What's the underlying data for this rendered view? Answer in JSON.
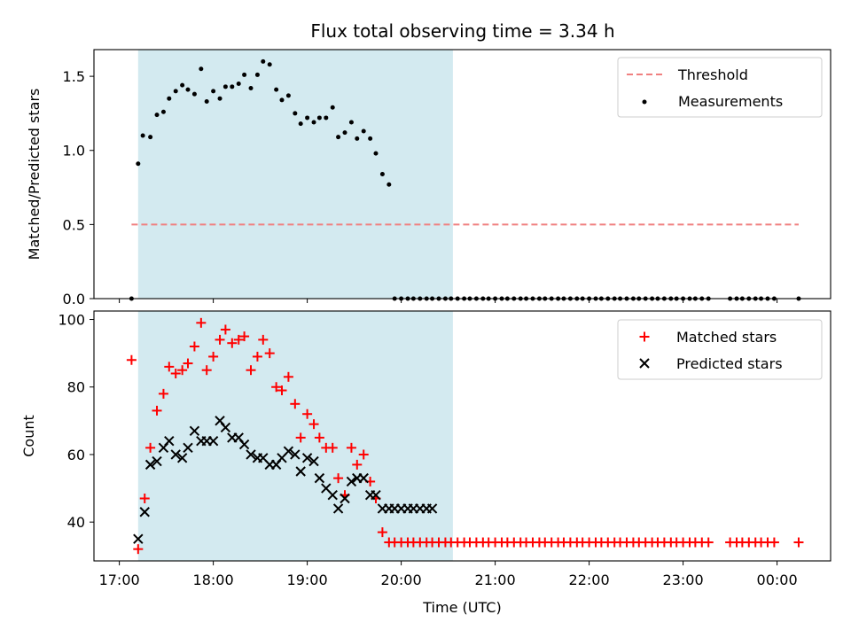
{
  "chart_data": {
    "title": "Flux total observing time = 3.34 h",
    "xlabel": "Time (UTC)",
    "x_ticks": [
      "17:00",
      "18:00",
      "19:00",
      "20:00",
      "21:00",
      "22:00",
      "23:00",
      "00:00"
    ],
    "x_tick_hours": [
      17,
      18,
      19,
      20,
      21,
      22,
      23,
      24
    ],
    "x_range_hours": [
      16.73,
      24.57
    ],
    "shaded_span_hours": [
      17.2,
      20.55
    ],
    "shade_color": "#d3eaf0",
    "panels": [
      {
        "type": "scatter",
        "ylabel": "Matched/Predicted stars",
        "ylim": [
          0,
          1.68
        ],
        "y_ticks": [
          "0.0",
          "0.5",
          "1.0",
          "1.5"
        ],
        "y_tick_values": [
          0,
          0.5,
          1.0,
          1.5
        ],
        "legend_position": "top-right",
        "threshold": {
          "name": "Threshold",
          "value": 0.5,
          "x_range_hours": [
            17.13,
            24.23
          ],
          "color": "#f08080"
        },
        "series": [
          {
            "name": "Measurements",
            "marker": "dot",
            "color": "#000000",
            "x": [
              17.13,
              17.2,
              17.25,
              17.33,
              17.4,
              17.47,
              17.53,
              17.6,
              17.67,
              17.73,
              17.8,
              17.87,
              17.93,
              18.0,
              18.07,
              18.13,
              18.2,
              18.27,
              18.33,
              18.4,
              18.47,
              18.53,
              18.6,
              18.67,
              18.73,
              18.8,
              18.87,
              18.93,
              19.0,
              19.07,
              19.13,
              19.2,
              19.27,
              19.33,
              19.4,
              19.47,
              19.53,
              19.6,
              19.67,
              19.73,
              19.8,
              19.87,
              19.93,
              20.0,
              20.07,
              20.13,
              20.2,
              20.27,
              20.33,
              20.4,
              20.47,
              20.53,
              20.6,
              20.67,
              20.73,
              20.8,
              20.87,
              20.93,
              21.0,
              21.07,
              21.13,
              21.2,
              21.27,
              21.33,
              21.4,
              21.47,
              21.53,
              21.6,
              21.67,
              21.73,
              21.8,
              21.87,
              21.93,
              22.0,
              22.07,
              22.13,
              22.2,
              22.27,
              22.33,
              22.4,
              22.47,
              22.53,
              22.6,
              22.67,
              22.73,
              22.8,
              22.87,
              22.93,
              23.0,
              23.07,
              23.13,
              23.2,
              23.27,
              23.5,
              23.57,
              23.63,
              23.7,
              23.77,
              23.83,
              23.9,
              23.97,
              24.23
            ],
            "y": [
              0,
              0.91,
              1.1,
              1.09,
              1.24,
              1.26,
              1.35,
              1.4,
              1.44,
              1.41,
              1.38,
              1.55,
              1.33,
              1.4,
              1.35,
              1.43,
              1.43,
              1.45,
              1.51,
              1.42,
              1.51,
              1.6,
              1.58,
              1.41,
              1.34,
              1.37,
              1.25,
              1.18,
              1.22,
              1.19,
              1.22,
              1.22,
              1.29,
              1.09,
              1.12,
              1.19,
              1.08,
              1.13,
              1.08,
              0.98,
              0.84,
              0.77,
              0,
              0,
              0,
              0,
              0,
              0,
              0,
              0,
              0,
              0,
              0,
              0,
              0,
              0,
              0,
              0,
              0,
              0,
              0,
              0,
              0,
              0,
              0,
              0,
              0,
              0,
              0,
              0,
              0,
              0,
              0,
              0,
              0,
              0,
              0,
              0,
              0,
              0,
              0,
              0,
              0,
              0,
              0,
              0,
              0,
              0,
              0,
              0,
              0,
              0,
              0,
              0,
              0,
              0,
              0,
              0,
              0,
              0,
              0,
              0
            ]
          }
        ]
      },
      {
        "type": "scatter",
        "ylabel": "Count",
        "ylim": [
          28.5,
          102.5
        ],
        "y_ticks": [
          "40",
          "60",
          "80",
          "100"
        ],
        "y_tick_values": [
          40,
          60,
          80,
          100
        ],
        "legend_position": "top-right",
        "series": [
          {
            "name": "Matched stars",
            "marker": "plus",
            "color": "#ff0000",
            "x": [
              17.13,
              17.2,
              17.27,
              17.33,
              17.4,
              17.47,
              17.53,
              17.6,
              17.67,
              17.73,
              17.8,
              17.87,
              17.93,
              18.0,
              18.07,
              18.13,
              18.2,
              18.27,
              18.33,
              18.4,
              18.47,
              18.53,
              18.6,
              18.67,
              18.73,
              18.8,
              18.87,
              18.93,
              19.0,
              19.07,
              19.13,
              19.2,
              19.27,
              19.33,
              19.4,
              19.47,
              19.53,
              19.6,
              19.67,
              19.73,
              19.8,
              19.87,
              19.93,
              20.0,
              20.07,
              20.13,
              20.2,
              20.27,
              20.33,
              20.4,
              20.47,
              20.53,
              20.6,
              20.67,
              20.73,
              20.8,
              20.87,
              20.93,
              21.0,
              21.07,
              21.13,
              21.2,
              21.27,
              21.33,
              21.4,
              21.47,
              21.53,
              21.6,
              21.67,
              21.73,
              21.8,
              21.87,
              21.93,
              22.0,
              22.07,
              22.13,
              22.2,
              22.27,
              22.33,
              22.4,
              22.47,
              22.53,
              22.6,
              22.67,
              22.73,
              22.8,
              22.87,
              22.93,
              23.0,
              23.07,
              23.13,
              23.2,
              23.27,
              23.5,
              23.57,
              23.63,
              23.7,
              23.77,
              23.83,
              23.9,
              23.97,
              24.23
            ],
            "y": [
              88,
              32,
              47,
              62,
              73,
              78,
              86,
              84,
              85,
              87,
              92,
              99,
              85,
              89,
              94,
              97,
              93,
              94,
              95,
              85,
              89,
              94,
              90,
              80,
              79,
              83,
              75,
              65,
              72,
              69,
              65,
              62,
              62,
              53,
              48,
              62,
              57,
              60,
              52,
              47,
              37,
              34,
              34,
              34,
              34,
              34,
              34,
              34,
              34,
              34,
              34,
              34,
              34,
              34,
              34,
              34,
              34,
              34,
              34,
              34,
              34,
              34,
              34,
              34,
              34,
              34,
              34,
              34,
              34,
              34,
              34,
              34,
              34,
              34,
              34,
              34,
              34,
              34,
              34,
              34,
              34,
              34,
              34,
              34,
              34,
              34,
              34,
              34,
              34,
              34,
              34,
              34,
              34,
              34,
              34,
              34,
              34,
              34,
              34,
              34,
              34,
              34
            ]
          },
          {
            "name": "Predicted stars",
            "marker": "x",
            "color": "#000000",
            "x": [
              17.2,
              17.27,
              17.33,
              17.4,
              17.47,
              17.53,
              17.6,
              17.67,
              17.73,
              17.8,
              17.87,
              17.93,
              18.0,
              18.07,
              18.13,
              18.2,
              18.27,
              18.33,
              18.4,
              18.47,
              18.53,
              18.6,
              18.67,
              18.73,
              18.8,
              18.87,
              18.93,
              19.0,
              19.07,
              19.13,
              19.2,
              19.27,
              19.33,
              19.4,
              19.47,
              19.53,
              19.6,
              19.67,
              19.73,
              19.8,
              19.87,
              19.93,
              20.0,
              20.07,
              20.13,
              20.2,
              20.27,
              20.33
            ],
            "y": [
              35,
              43,
              57,
              58,
              62,
              64,
              60,
              59,
              62,
              67,
              64,
              64,
              64,
              70,
              68,
              65,
              65,
              63,
              60,
              59,
              59,
              57,
              57,
              59,
              61,
              60,
              55,
              59,
              58,
              53,
              50,
              48,
              44,
              47,
              52,
              53,
              53,
              48,
              48,
              44,
              44,
              44,
              44,
              44,
              44,
              44,
              44,
              44
            ]
          }
        ]
      }
    ]
  }
}
